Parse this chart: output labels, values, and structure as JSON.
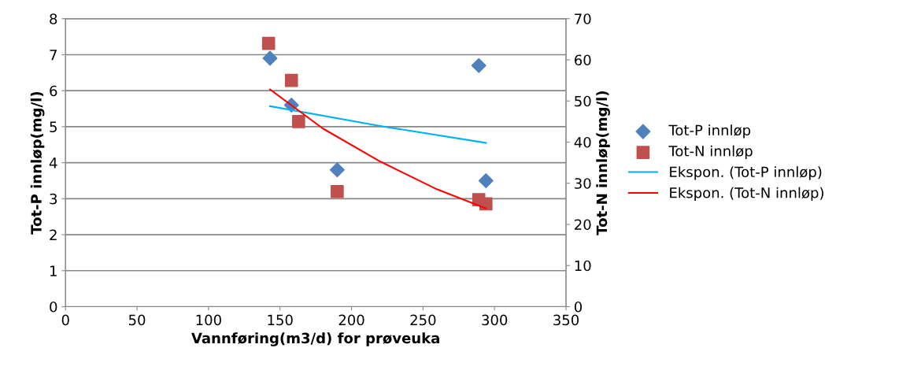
{
  "chart_data": {
    "type": "scatter",
    "xlabel": "Vannføring(m3/d) for prøveuka",
    "ylabel": "Tot-P innløp(mg/l)",
    "y2label": "Tot-N innløp(mg/l)",
    "xlim": [
      0,
      350
    ],
    "xticks": [
      0,
      50,
      100,
      150,
      200,
      250,
      300,
      350
    ],
    "ylim": [
      0,
      8
    ],
    "yticks": [
      0,
      1,
      2,
      3,
      4,
      5,
      6,
      7,
      8
    ],
    "y2lim": [
      0,
      70
    ],
    "y2ticks": [
      0,
      10,
      20,
      30,
      40,
      50,
      60,
      70
    ],
    "grid": "y",
    "legend": "right",
    "series": [
      {
        "name": "Tot-P innløp",
        "marker": "diamond",
        "color": "#4f81bd",
        "x": [
          143,
          158,
          190,
          289,
          294
        ],
        "values": [
          6.9,
          5.6,
          3.8,
          6.7,
          3.5
        ]
      },
      {
        "name": "Tot-N innløp",
        "marker": "square",
        "color": "#c0504d",
        "axis": "y2",
        "x": [
          142,
          158,
          163,
          190,
          289,
          294
        ],
        "values": [
          64,
          55,
          45,
          28,
          26,
          25
        ]
      },
      {
        "name": "Ekspon. (Tot-P innløp)",
        "type": "line",
        "marker": "none",
        "color": "#00b0f0",
        "x": [
          143,
          220,
          294
        ],
        "values": [
          5.57,
          5.02,
          4.55
        ]
      },
      {
        "name": "Ekspon. (Tot-N innløp)",
        "type": "line",
        "marker": "none",
        "color": "#ff0000",
        "axis": "y2",
        "x": [
          143,
          180,
          220,
          260,
          294
        ],
        "values": [
          52.8,
          43.3,
          35.3,
          28.5,
          23.9
        ]
      }
    ]
  }
}
